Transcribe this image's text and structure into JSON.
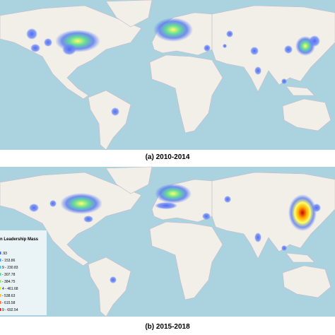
{
  "panels": [
    {
      "caption": "(a) 2010-2014"
    },
    {
      "caption": "(b) 2015-2018"
    }
  ],
  "legend": {
    "title": "n Leadership Mass",
    "items": [
      ".93",
      "- 153.86",
      "9 - 230.83",
      "- 307.78",
      "- 384.75",
      "4 - 461.68",
      "- 538.63",
      "- 615.58",
      "9 - 692.54"
    ]
  }
}
